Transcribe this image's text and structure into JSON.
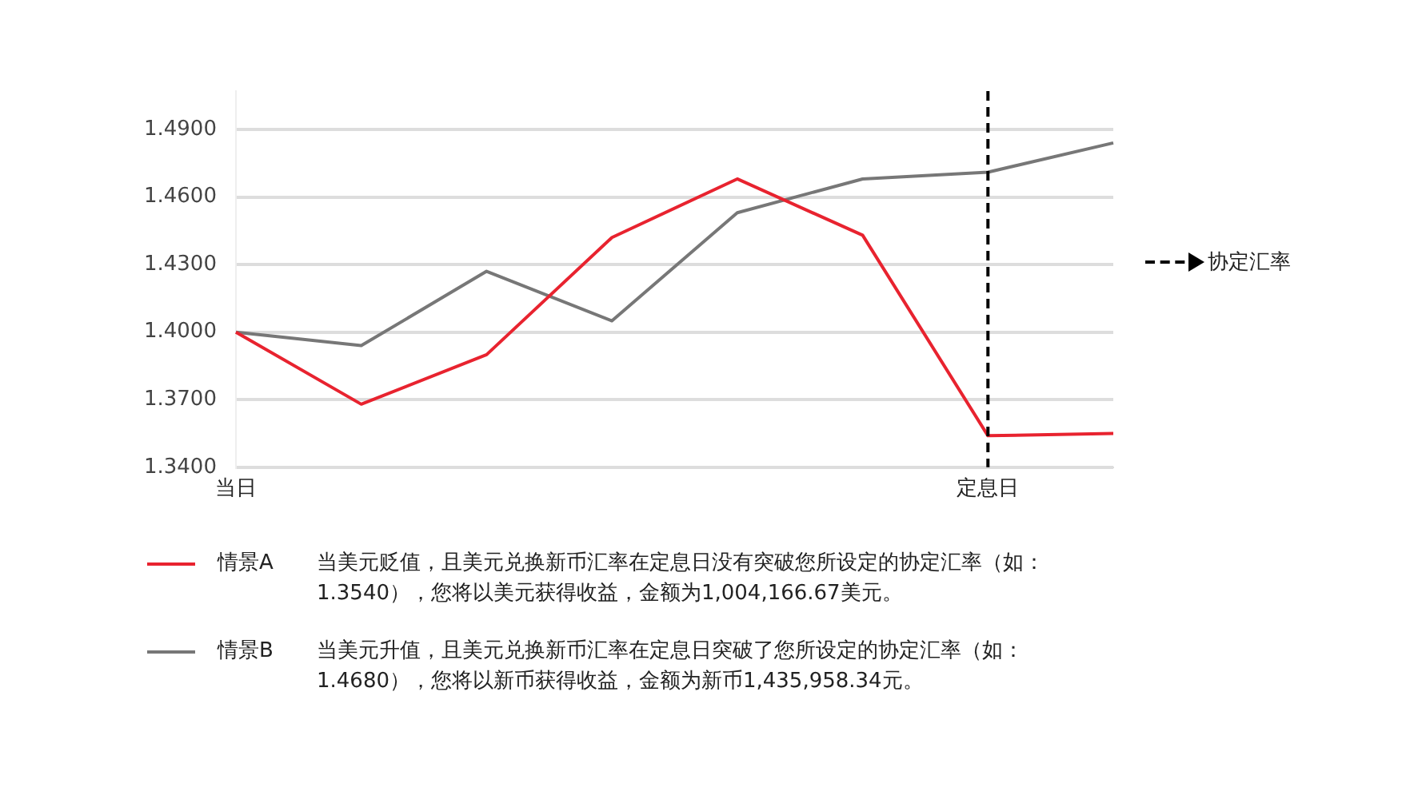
{
  "chart_data": {
    "type": "line",
    "categories": [
      "当日",
      null,
      null,
      null,
      null,
      null,
      "定息日",
      null
    ],
    "series": [
      {
        "name": "情景A",
        "color": "#e8232f",
        "values": [
          1.4,
          1.368,
          1.39,
          1.442,
          1.468,
          1.443,
          1.354,
          1.355
        ]
      },
      {
        "name": "情景B",
        "color": "#777777",
        "values": [
          1.4,
          1.394,
          1.427,
          1.405,
          1.453,
          1.468,
          1.471,
          1.484
        ]
      }
    ],
    "ylim": [
      1.34,
      1.507
    ],
    "yticks": [
      {
        "value": 1.34,
        "label": "1.3400"
      },
      {
        "value": 1.37,
        "label": "1.3700"
      },
      {
        "value": 1.4,
        "label": "1.4000"
      },
      {
        "value": 1.43,
        "label": "1.4300"
      },
      {
        "value": 1.46,
        "label": "1.4600"
      },
      {
        "value": 1.49,
        "label": "1.4900"
      }
    ],
    "ref_lines": [
      {
        "axis": "x",
        "value": "定息日",
        "color": "#000000",
        "line_style": "dashed"
      }
    ],
    "annotations": [
      "当美元贬值，且美元兑换新币汇率在定息日没有突破您所设定的协定汇率（如：1.3540），您将以美元获得收益，金额为1,004,166.67美元。",
      "当美元升值，且美元兑换新币汇率在定息日突破了您所设定的协定汇率（如：1.4680），您将以新币获得收益，金额为新币1,435,958.34元。",
      "协定汇率"
    ],
    "grid": "y",
    "legend": "bottom",
    "marker": "none",
    "line_style": "solid"
  }
}
